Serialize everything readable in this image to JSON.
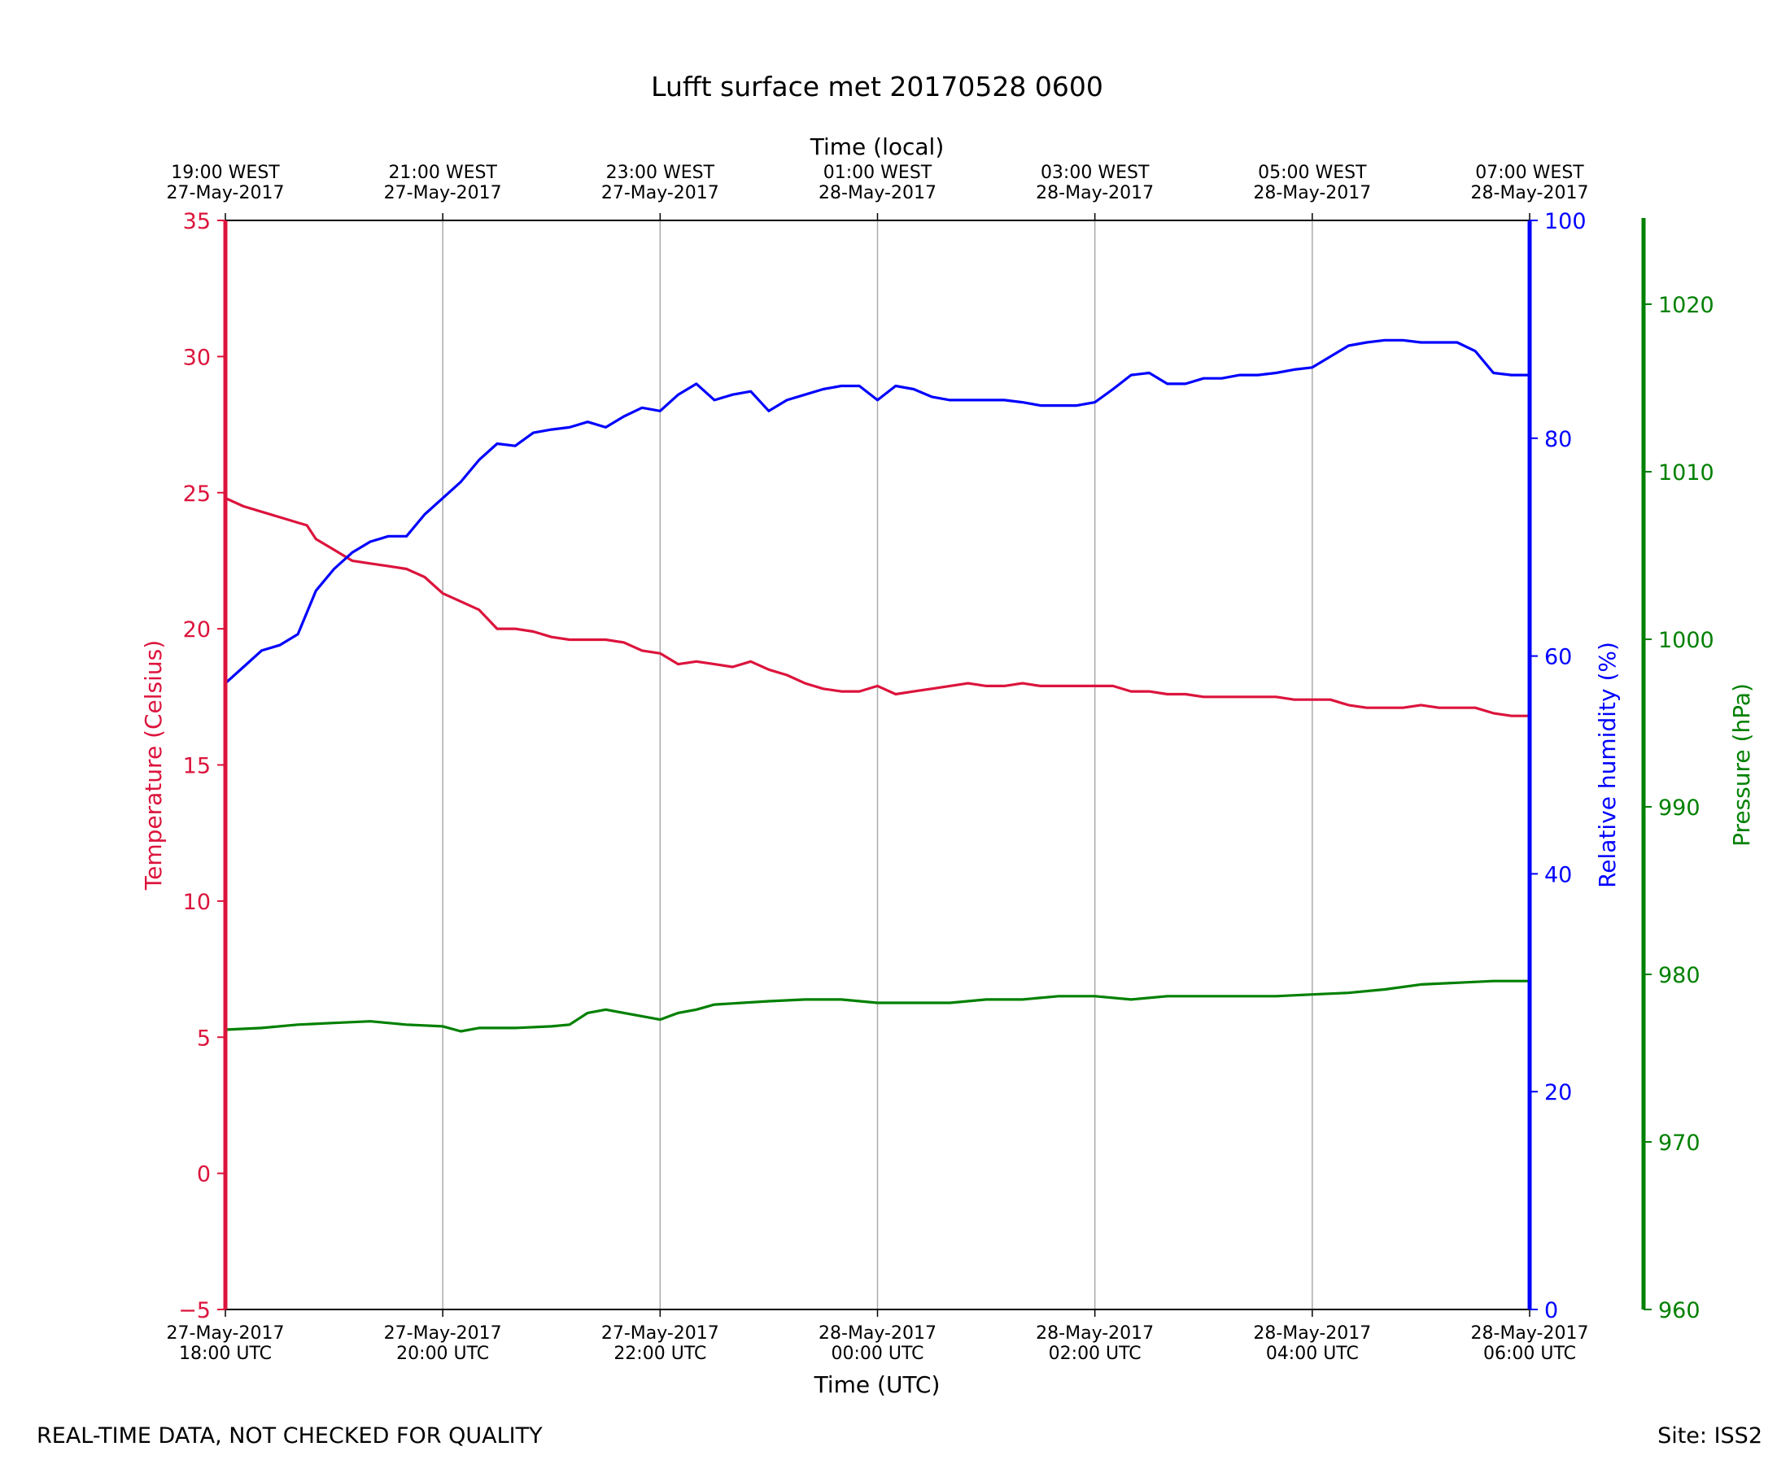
{
  "colors": {
    "temperature": "#dc143c",
    "humidity": "#0000ff",
    "pressure": "#008000",
    "grid": "#aaaaaa",
    "axis": "#000000"
  },
  "footer": {
    "left": "REAL-TIME DATA, NOT CHECKED FOR QUALITY",
    "right": "Site: ISS2"
  },
  "chart_data": {
    "type": "line",
    "title": "Lufft surface met 20170528 0600",
    "grid": true,
    "x_bottom": {
      "label": "Time (UTC)",
      "range": [
        "2017-05-27 18:00",
        "2017-05-28 06:00"
      ],
      "ticks": [
        {
          "t": "2017-05-27 18:00",
          "line1": "27-May-2017",
          "line2": "18:00 UTC"
        },
        {
          "t": "2017-05-27 20:00",
          "line1": "27-May-2017",
          "line2": "20:00 UTC"
        },
        {
          "t": "2017-05-27 22:00",
          "line1": "27-May-2017",
          "line2": "22:00 UTC"
        },
        {
          "t": "2017-05-28 00:00",
          "line1": "28-May-2017",
          "line2": "00:00 UTC"
        },
        {
          "t": "2017-05-28 02:00",
          "line1": "28-May-2017",
          "line2": "02:00 UTC"
        },
        {
          "t": "2017-05-28 04:00",
          "line1": "28-May-2017",
          "line2": "04:00 UTC"
        },
        {
          "t": "2017-05-28 06:00",
          "line1": "28-May-2017",
          "line2": "06:00 UTC"
        }
      ]
    },
    "x_top": {
      "label": "Time (local)",
      "ticks": [
        {
          "t": "2017-05-27 18:00",
          "line1": "19:00 WEST",
          "line2": "27-May-2017"
        },
        {
          "t": "2017-05-27 20:00",
          "line1": "21:00 WEST",
          "line2": "27-May-2017"
        },
        {
          "t": "2017-05-27 22:00",
          "line1": "23:00 WEST",
          "line2": "27-May-2017"
        },
        {
          "t": "2017-05-28 00:00",
          "line1": "01:00 WEST",
          "line2": "28-May-2017"
        },
        {
          "t": "2017-05-28 02:00",
          "line1": "03:00 WEST",
          "line2": "28-May-2017"
        },
        {
          "t": "2017-05-28 04:00",
          "line1": "05:00 WEST",
          "line2": "28-May-2017"
        },
        {
          "t": "2017-05-28 06:00",
          "line1": "07:00 WEST",
          "line2": "28-May-2017"
        }
      ]
    },
    "y_axes": [
      {
        "key": "temp",
        "label": "Temperature (Celsius)",
        "range": [
          -5,
          35
        ],
        "ticks": [
          "−5",
          "0",
          "5",
          "10",
          "15",
          "20",
          "25",
          "30",
          "35"
        ]
      },
      {
        "key": "rh",
        "label": "Relative humidity (%)",
        "range": [
          0,
          100
        ],
        "ticks": [
          "0",
          "20",
          "40",
          "60",
          "80",
          "100"
        ]
      },
      {
        "key": "pres",
        "label": "Pressure (hPa)",
        "range": [
          960,
          1025
        ],
        "ticks": [
          "960",
          "970",
          "980",
          "990",
          "1000",
          "1010",
          "1020"
        ]
      }
    ],
    "series": [
      {
        "name": "Temperature (Celsius)",
        "axis": "temp",
        "points": [
          [
            "2017-05-27 18:00",
            24.8
          ],
          [
            "2017-05-27 18:10",
            24.5
          ],
          [
            "2017-05-27 18:20",
            24.3
          ],
          [
            "2017-05-27 18:30",
            24.1
          ],
          [
            "2017-05-27 18:40",
            23.9
          ],
          [
            "2017-05-27 18:45",
            23.8
          ],
          [
            "2017-05-27 18:50",
            23.3
          ],
          [
            "2017-05-27 19:00",
            22.9
          ],
          [
            "2017-05-27 19:10",
            22.5
          ],
          [
            "2017-05-27 19:20",
            22.4
          ],
          [
            "2017-05-27 19:30",
            22.3
          ],
          [
            "2017-05-27 19:40",
            22.2
          ],
          [
            "2017-05-27 19:50",
            21.9
          ],
          [
            "2017-05-27 20:00",
            21.3
          ],
          [
            "2017-05-27 20:10",
            21.0
          ],
          [
            "2017-05-27 20:20",
            20.7
          ],
          [
            "2017-05-27 20:30",
            20.0
          ],
          [
            "2017-05-27 20:40",
            20.0
          ],
          [
            "2017-05-27 20:50",
            19.9
          ],
          [
            "2017-05-27 21:00",
            19.7
          ],
          [
            "2017-05-27 21:10",
            19.6
          ],
          [
            "2017-05-27 21:20",
            19.6
          ],
          [
            "2017-05-27 21:30",
            19.6
          ],
          [
            "2017-05-27 21:40",
            19.5
          ],
          [
            "2017-05-27 21:50",
            19.2
          ],
          [
            "2017-05-27 22:00",
            19.1
          ],
          [
            "2017-05-27 22:10",
            18.7
          ],
          [
            "2017-05-27 22:20",
            18.8
          ],
          [
            "2017-05-27 22:30",
            18.7
          ],
          [
            "2017-05-27 22:40",
            18.6
          ],
          [
            "2017-05-27 22:50",
            18.8
          ],
          [
            "2017-05-27 23:00",
            18.5
          ],
          [
            "2017-05-27 23:10",
            18.3
          ],
          [
            "2017-05-27 23:20",
            18.0
          ],
          [
            "2017-05-27 23:30",
            17.8
          ],
          [
            "2017-05-27 23:40",
            17.7
          ],
          [
            "2017-05-27 23:50",
            17.7
          ],
          [
            "2017-05-28 00:00",
            17.9
          ],
          [
            "2017-05-28 00:10",
            17.6
          ],
          [
            "2017-05-28 00:20",
            17.7
          ],
          [
            "2017-05-28 00:30",
            17.8
          ],
          [
            "2017-05-28 00:40",
            17.9
          ],
          [
            "2017-05-28 00:50",
            18.0
          ],
          [
            "2017-05-28 01:00",
            17.9
          ],
          [
            "2017-05-28 01:10",
            17.9
          ],
          [
            "2017-05-28 01:20",
            18.0
          ],
          [
            "2017-05-28 01:30",
            17.9
          ],
          [
            "2017-05-28 01:40",
            17.9
          ],
          [
            "2017-05-28 01:50",
            17.9
          ],
          [
            "2017-05-28 02:00",
            17.9
          ],
          [
            "2017-05-28 02:10",
            17.9
          ],
          [
            "2017-05-28 02:20",
            17.7
          ],
          [
            "2017-05-28 02:30",
            17.7
          ],
          [
            "2017-05-28 02:40",
            17.6
          ],
          [
            "2017-05-28 02:50",
            17.6
          ],
          [
            "2017-05-28 03:00",
            17.5
          ],
          [
            "2017-05-28 03:10",
            17.5
          ],
          [
            "2017-05-28 03:20",
            17.5
          ],
          [
            "2017-05-28 03:30",
            17.5
          ],
          [
            "2017-05-28 03:40",
            17.5
          ],
          [
            "2017-05-28 03:50",
            17.4
          ],
          [
            "2017-05-28 04:00",
            17.4
          ],
          [
            "2017-05-28 04:10",
            17.4
          ],
          [
            "2017-05-28 04:20",
            17.2
          ],
          [
            "2017-05-28 04:30",
            17.1
          ],
          [
            "2017-05-28 04:40",
            17.1
          ],
          [
            "2017-05-28 04:50",
            17.1
          ],
          [
            "2017-05-28 05:00",
            17.2
          ],
          [
            "2017-05-28 05:10",
            17.1
          ],
          [
            "2017-05-28 05:20",
            17.1
          ],
          [
            "2017-05-28 05:30",
            17.1
          ],
          [
            "2017-05-28 05:40",
            16.9
          ],
          [
            "2017-05-28 05:50",
            16.8
          ],
          [
            "2017-05-28 06:00",
            16.8
          ]
        ]
      },
      {
        "name": "Relative humidity (%)",
        "axis": "rh",
        "points": [
          [
            "2017-05-27 18:00",
            57.5
          ],
          [
            "2017-05-27 18:10",
            59.0
          ],
          [
            "2017-05-27 18:20",
            60.5
          ],
          [
            "2017-05-27 18:30",
            61.0
          ],
          [
            "2017-05-27 18:40",
            62.0
          ],
          [
            "2017-05-27 18:50",
            66.0
          ],
          [
            "2017-05-27 19:00",
            68.0
          ],
          [
            "2017-05-27 19:10",
            69.5
          ],
          [
            "2017-05-27 19:20",
            70.5
          ],
          [
            "2017-05-27 19:30",
            71.0
          ],
          [
            "2017-05-27 19:40",
            71.0
          ],
          [
            "2017-05-27 19:50",
            73.0
          ],
          [
            "2017-05-27 20:00",
            74.5
          ],
          [
            "2017-05-27 20:10",
            76.0
          ],
          [
            "2017-05-27 20:20",
            78.0
          ],
          [
            "2017-05-27 20:30",
            79.5
          ],
          [
            "2017-05-27 20:40",
            79.3
          ],
          [
            "2017-05-27 20:50",
            80.5
          ],
          [
            "2017-05-27 21:00",
            80.8
          ],
          [
            "2017-05-27 21:10",
            81.0
          ],
          [
            "2017-05-27 21:20",
            81.5
          ],
          [
            "2017-05-27 21:30",
            81.0
          ],
          [
            "2017-05-27 21:40",
            82.0
          ],
          [
            "2017-05-27 21:50",
            82.8
          ],
          [
            "2017-05-27 22:00",
            82.5
          ],
          [
            "2017-05-27 22:10",
            84.0
          ],
          [
            "2017-05-27 22:20",
            85.0
          ],
          [
            "2017-05-27 22:30",
            83.5
          ],
          [
            "2017-05-27 22:40",
            84.0
          ],
          [
            "2017-05-27 22:50",
            84.3
          ],
          [
            "2017-05-27 23:00",
            82.5
          ],
          [
            "2017-05-27 23:10",
            83.5
          ],
          [
            "2017-05-27 23:20",
            84.0
          ],
          [
            "2017-05-27 23:30",
            84.5
          ],
          [
            "2017-05-27 23:40",
            84.8
          ],
          [
            "2017-05-27 23:50",
            84.8
          ],
          [
            "2017-05-28 00:00",
            83.5
          ],
          [
            "2017-05-28 00:10",
            84.8
          ],
          [
            "2017-05-28 00:20",
            84.5
          ],
          [
            "2017-05-28 00:30",
            83.8
          ],
          [
            "2017-05-28 00:40",
            83.5
          ],
          [
            "2017-05-28 00:50",
            83.5
          ],
          [
            "2017-05-28 01:00",
            83.5
          ],
          [
            "2017-05-28 01:10",
            83.5
          ],
          [
            "2017-05-28 01:20",
            83.3
          ],
          [
            "2017-05-28 01:30",
            83.0
          ],
          [
            "2017-05-28 01:40",
            83.0
          ],
          [
            "2017-05-28 01:50",
            83.0
          ],
          [
            "2017-05-28 02:00",
            83.3
          ],
          [
            "2017-05-28 02:10",
            84.5
          ],
          [
            "2017-05-28 02:20",
            85.8
          ],
          [
            "2017-05-28 02:30",
            86.0
          ],
          [
            "2017-05-28 02:40",
            85.0
          ],
          [
            "2017-05-28 02:50",
            85.0
          ],
          [
            "2017-05-28 03:00",
            85.5
          ],
          [
            "2017-05-28 03:10",
            85.5
          ],
          [
            "2017-05-28 03:20",
            85.8
          ],
          [
            "2017-05-28 03:30",
            85.8
          ],
          [
            "2017-05-28 03:40",
            86.0
          ],
          [
            "2017-05-28 03:50",
            86.3
          ],
          [
            "2017-05-28 04:00",
            86.5
          ],
          [
            "2017-05-28 04:10",
            87.5
          ],
          [
            "2017-05-28 04:20",
            88.5
          ],
          [
            "2017-05-28 04:30",
            88.8
          ],
          [
            "2017-05-28 04:40",
            89.0
          ],
          [
            "2017-05-28 04:50",
            89.0
          ],
          [
            "2017-05-28 05:00",
            88.8
          ],
          [
            "2017-05-28 05:10",
            88.8
          ],
          [
            "2017-05-28 05:20",
            88.8
          ],
          [
            "2017-05-28 05:30",
            88.0
          ],
          [
            "2017-05-28 05:40",
            86.0
          ],
          [
            "2017-05-28 05:50",
            85.8
          ],
          [
            "2017-05-28 06:00",
            85.8
          ]
        ]
      },
      {
        "name": "Pressure (hPa)",
        "axis": "pres",
        "points": [
          [
            "2017-05-27 18:00",
            976.7
          ],
          [
            "2017-05-27 18:20",
            976.8
          ],
          [
            "2017-05-27 18:40",
            977.0
          ],
          [
            "2017-05-27 19:00",
            977.1
          ],
          [
            "2017-05-27 19:20",
            977.2
          ],
          [
            "2017-05-27 19:40",
            977.0
          ],
          [
            "2017-05-27 20:00",
            976.9
          ],
          [
            "2017-05-27 20:10",
            976.6
          ],
          [
            "2017-05-27 20:20",
            976.8
          ],
          [
            "2017-05-27 20:40",
            976.8
          ],
          [
            "2017-05-27 21:00",
            976.9
          ],
          [
            "2017-05-27 21:10",
            977.0
          ],
          [
            "2017-05-27 21:20",
            977.7
          ],
          [
            "2017-05-27 21:30",
            977.9
          ],
          [
            "2017-05-27 21:40",
            977.7
          ],
          [
            "2017-05-27 22:00",
            977.3
          ],
          [
            "2017-05-27 22:10",
            977.7
          ],
          [
            "2017-05-27 22:20",
            977.9
          ],
          [
            "2017-05-27 22:30",
            978.2
          ],
          [
            "2017-05-27 23:00",
            978.4
          ],
          [
            "2017-05-27 23:20",
            978.5
          ],
          [
            "2017-05-27 23:40",
            978.5
          ],
          [
            "2017-05-28 00:00",
            978.3
          ],
          [
            "2017-05-28 00:20",
            978.3
          ],
          [
            "2017-05-28 00:40",
            978.3
          ],
          [
            "2017-05-28 01:00",
            978.5
          ],
          [
            "2017-05-28 01:20",
            978.5
          ],
          [
            "2017-05-28 01:40",
            978.7
          ],
          [
            "2017-05-28 02:00",
            978.7
          ],
          [
            "2017-05-28 02:20",
            978.5
          ],
          [
            "2017-05-28 02:40",
            978.7
          ],
          [
            "2017-05-28 03:00",
            978.7
          ],
          [
            "2017-05-28 03:20",
            978.7
          ],
          [
            "2017-05-28 03:40",
            978.7
          ],
          [
            "2017-05-28 04:00",
            978.8
          ],
          [
            "2017-05-28 04:20",
            978.9
          ],
          [
            "2017-05-28 04:40",
            979.1
          ],
          [
            "2017-05-28 05:00",
            979.4
          ],
          [
            "2017-05-28 05:20",
            979.5
          ],
          [
            "2017-05-28 05:40",
            979.6
          ],
          [
            "2017-05-28 06:00",
            979.6
          ]
        ]
      }
    ]
  }
}
